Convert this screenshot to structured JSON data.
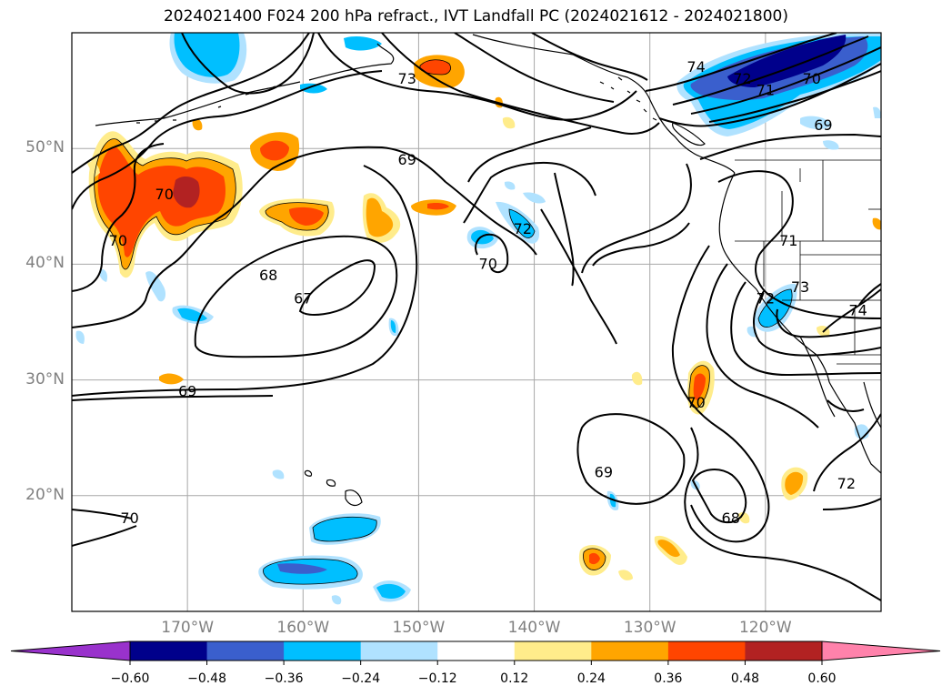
{
  "title": "2024021400 F024 200 hPa refract., IVT Landfall PC (2024021612 - 2024021800)",
  "map": {
    "extent": {
      "lon_min": -180,
      "lon_max": -110,
      "lat_min": 10,
      "lat_max": 60
    },
    "lat_ticks": [
      {
        "value": 50,
        "label": "50°N"
      },
      {
        "value": 40,
        "label": "40°N"
      },
      {
        "value": 30,
        "label": "30°N"
      },
      {
        "value": 20,
        "label": "20°N"
      }
    ],
    "lon_ticks": [
      {
        "value": -170,
        "label": "170°W"
      },
      {
        "value": -160,
        "label": "160°W"
      },
      {
        "value": -150,
        "label": "150°W"
      },
      {
        "value": -140,
        "label": "140°W"
      },
      {
        "value": -130,
        "label": "130°W"
      },
      {
        "value": -120,
        "label": "120°W"
      }
    ],
    "contour_labels": [
      {
        "text": "70",
        "lon": -172,
        "lat": 46
      },
      {
        "text": "70",
        "lon": -176,
        "lat": 42
      },
      {
        "text": "73",
        "lon": -151,
        "lat": 56
      },
      {
        "text": "69",
        "lon": -151,
        "lat": 49
      },
      {
        "text": "68",
        "lon": -163,
        "lat": 39
      },
      {
        "text": "67",
        "lon": -160,
        "lat": 37
      },
      {
        "text": "69",
        "lon": -170,
        "lat": 29
      },
      {
        "text": "70",
        "lon": -175,
        "lat": 18
      },
      {
        "text": "70",
        "lon": -144,
        "lat": 40
      },
      {
        "text": "72",
        "lon": -141,
        "lat": 43
      },
      {
        "text": "70",
        "lon": -126,
        "lat": 28
      },
      {
        "text": "69",
        "lon": -134,
        "lat": 22
      },
      {
        "text": "68",
        "lon": -123,
        "lat": 18
      },
      {
        "text": "74",
        "lon": -126,
        "lat": 57
      },
      {
        "text": "72",
        "lon": -122,
        "lat": 56
      },
      {
        "text": "71",
        "lon": -120,
        "lat": 55
      },
      {
        "text": "70",
        "lon": -116,
        "lat": 56
      },
      {
        "text": "69",
        "lon": -115,
        "lat": 52
      },
      {
        "text": "71",
        "lon": -118,
        "lat": 42
      },
      {
        "text": "73",
        "lon": -117,
        "lat": 38
      },
      {
        "text": "72",
        "lon": -120,
        "lat": 37
      },
      {
        "text": "74",
        "lon": -112,
        "lat": 36
      },
      {
        "text": "72",
        "lon": -113,
        "lat": 21
      }
    ]
  },
  "colorbar": {
    "extend": "both",
    "colors": [
      "#9932cc",
      "#00008b",
      "#3a5fcd",
      "#00bfff",
      "#b0e2ff",
      "#ffffff",
      "#ffec8b",
      "#ffa500",
      "#ff4500",
      "#b22222",
      "#ff82ab"
    ],
    "ticks": [
      "−0.60",
      "−0.48",
      "−0.36",
      "−0.24",
      "−0.12",
      "0.12",
      "0.24",
      "0.36",
      "0.48",
      "0.60"
    ]
  }
}
